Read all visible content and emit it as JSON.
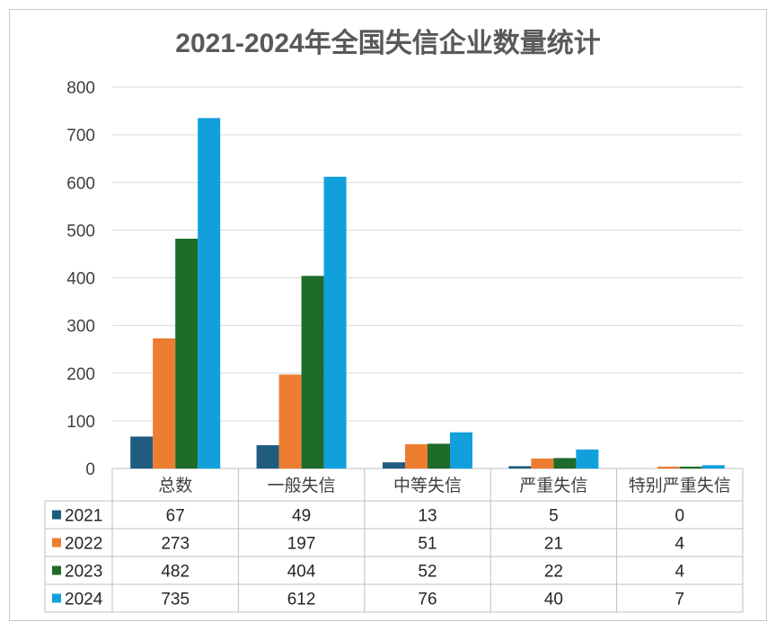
{
  "chart_data": {
    "type": "bar",
    "title": "2021-2024年全国失信企业数量统计",
    "categories": [
      "总数",
      "一般失信",
      "中等失信",
      "严重失信",
      "特别严重失信"
    ],
    "series": [
      {
        "name": "2021",
        "color": "#1f5c80",
        "values": [
          67,
          49,
          13,
          5,
          0
        ]
      },
      {
        "name": "2022",
        "color": "#ed7d31",
        "values": [
          273,
          197,
          51,
          21,
          4
        ]
      },
      {
        "name": "2023",
        "color": "#1e6b2a",
        "values": [
          482,
          404,
          52,
          22,
          4
        ]
      },
      {
        "name": "2024",
        "color": "#12a0dc",
        "values": [
          735,
          612,
          76,
          40,
          7
        ]
      }
    ],
    "ylim": [
      0,
      800
    ],
    "yticks": [
      0,
      100,
      200,
      300,
      400,
      500,
      600,
      700,
      800
    ],
    "grid": true,
    "legend": "data-table"
  }
}
